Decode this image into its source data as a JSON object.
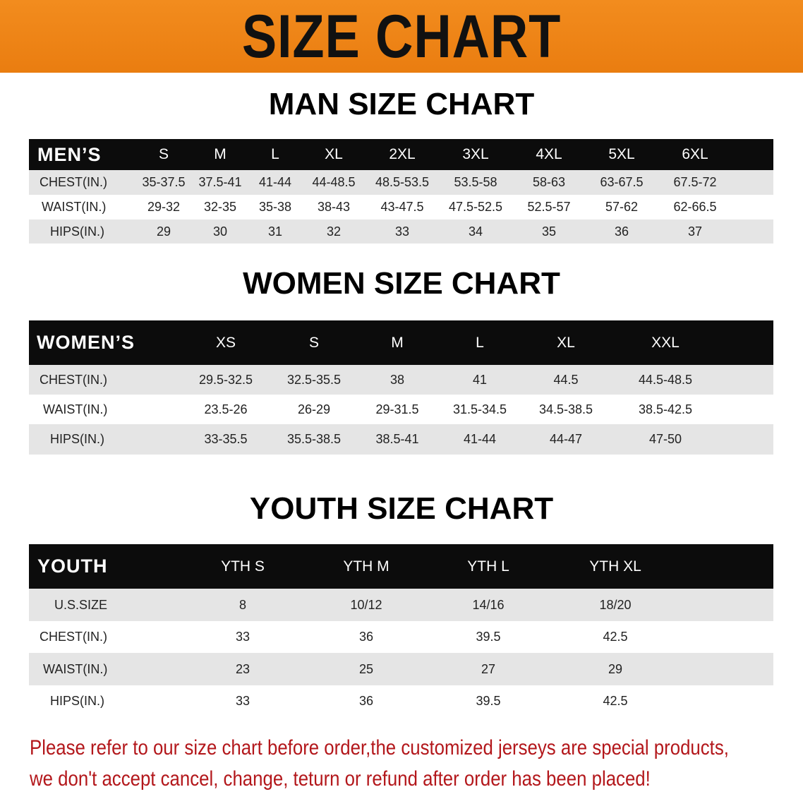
{
  "banner": {
    "title": "SIZE CHART",
    "color": "#ee8418"
  },
  "men": {
    "title": "MAN SIZE CHART",
    "header": [
      "MEN’S",
      "S",
      "M",
      "L",
      "XL",
      "2XL",
      "3XL",
      "4XL",
      "5XL",
      "6XL"
    ],
    "rows": [
      [
        "CHEST(IN.)",
        "35-37.5",
        "37.5-41",
        "41-44",
        "44-48.5",
        "48.5-53.5",
        "53.5-58",
        "58-63",
        "63-67.5",
        "67.5-72"
      ],
      [
        "WAIST(IN.)",
        "29-32",
        "32-35",
        "35-38",
        "38-43",
        "43-47.5",
        "47.5-52.5",
        "52.5-57",
        "57-62",
        "62-66.5"
      ],
      [
        "HIPS(IN.)",
        "29",
        "30",
        "31",
        "32",
        "33",
        "34",
        "35",
        "36",
        "37"
      ]
    ]
  },
  "women": {
    "title": "WOMEN SIZE CHART",
    "header": [
      "WOMEN’S",
      "XS",
      "S",
      "M",
      "L",
      "XL",
      "XXL"
    ],
    "rows": [
      [
        "CHEST(IN.)",
        "29.5-32.5",
        "32.5-35.5",
        "38",
        "41",
        "44.5",
        "44.5-48.5"
      ],
      [
        "WAIST(IN.)",
        "23.5-26",
        "26-29",
        "29-31.5",
        "31.5-34.5",
        "34.5-38.5",
        "38.5-42.5"
      ],
      [
        "HIPS(IN.)",
        "33-35.5",
        "35.5-38.5",
        "38.5-41",
        "41-44",
        "44-47",
        "47-50"
      ]
    ]
  },
  "youth": {
    "title": "YOUTH SIZE CHART",
    "header": [
      "YOUTH",
      "YTH S",
      "YTH M",
      "YTH L",
      "YTH XL"
    ],
    "rows": [
      [
        "U.S.SIZE",
        "8",
        "10/12",
        "14/16",
        "18/20"
      ],
      [
        "CHEST(IN.)",
        "33",
        "36",
        "39.5",
        "42.5"
      ],
      [
        "WAIST(IN.)",
        "23",
        "25",
        "27",
        "29"
      ],
      [
        "HIPS(IN.)",
        "33",
        "36",
        "39.5",
        "42.5"
      ]
    ]
  },
  "note": {
    "line1": "Please refer to our size chart before order,the customized jerseys are special products,",
    "line2": "we don't accept cancel, change, teturn or refund after order has been placed!",
    "color": "#b3171b"
  }
}
